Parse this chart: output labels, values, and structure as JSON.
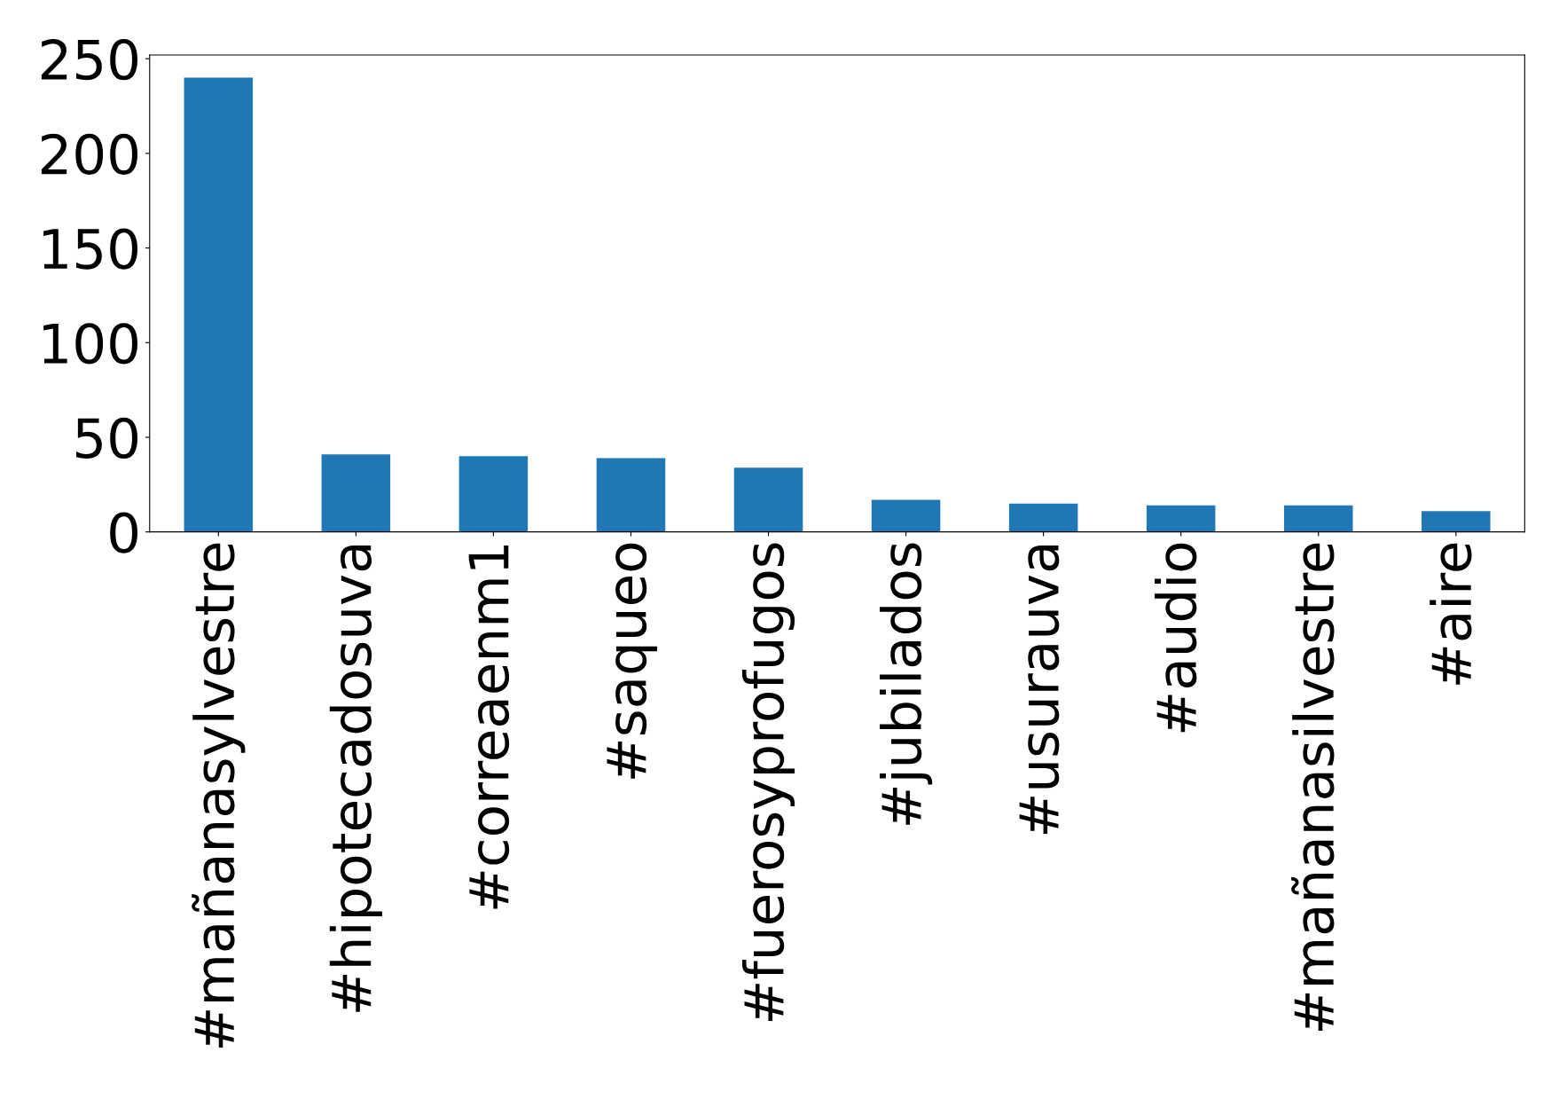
{
  "chart_data": {
    "type": "bar",
    "categories": [
      "#mañanasylvestre",
      "#hipotecadosuva",
      "#correaenm1",
      "#saqueo",
      "#fuerosyprofugos",
      "#jubilados",
      "#usurauva",
      "#audio",
      "#mañanasilvestre",
      "#aire"
    ],
    "values": [
      240,
      41,
      40,
      39,
      34,
      17,
      15,
      14,
      14,
      11
    ],
    "color": "#1f77b4",
    "ylim": [
      0,
      252
    ],
    "yticks": [
      0,
      50,
      100,
      150,
      200,
      250
    ]
  }
}
